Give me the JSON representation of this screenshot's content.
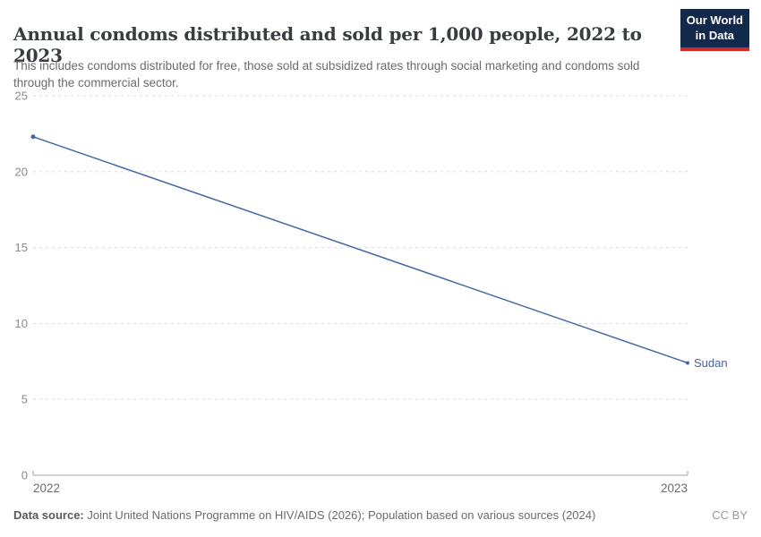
{
  "header": {
    "title": "Annual condoms distributed and sold per 1,000 people, 2022 to 2023",
    "subtitle": "This includes condoms distributed for free, those sold at subsidized rates through social marketing and condoms sold through the commercial sector.",
    "logo": {
      "line1": "Our World",
      "line2": "in Data",
      "bg_color": "#12294b",
      "accent_color": "#cf2b2b"
    }
  },
  "chart_data": {
    "type": "line",
    "title": "Annual condoms distributed and sold per 1,000 people, 2022 to 2023",
    "x": [
      2022,
      2023
    ],
    "x_tick_labels": [
      "2022",
      "2023"
    ],
    "series": [
      {
        "name": "Sudan",
        "values": [
          22.3,
          7.4
        ],
        "color": "#4466a5"
      }
    ],
    "ylim": [
      0,
      25
    ],
    "y_ticks": [
      0,
      5,
      10,
      15,
      20,
      25
    ],
    "grid": "horizontal-dashed",
    "grid_color": "#dcdcdc",
    "axis_color": "#a3a3a3",
    "legend": "end-of-line-label"
  },
  "footer": {
    "source_label": "Data source:",
    "source_text": " Joint United Nations Programme on HIV/AIDS (2026); Population based on various sources (2024)",
    "license": "CC BY"
  }
}
